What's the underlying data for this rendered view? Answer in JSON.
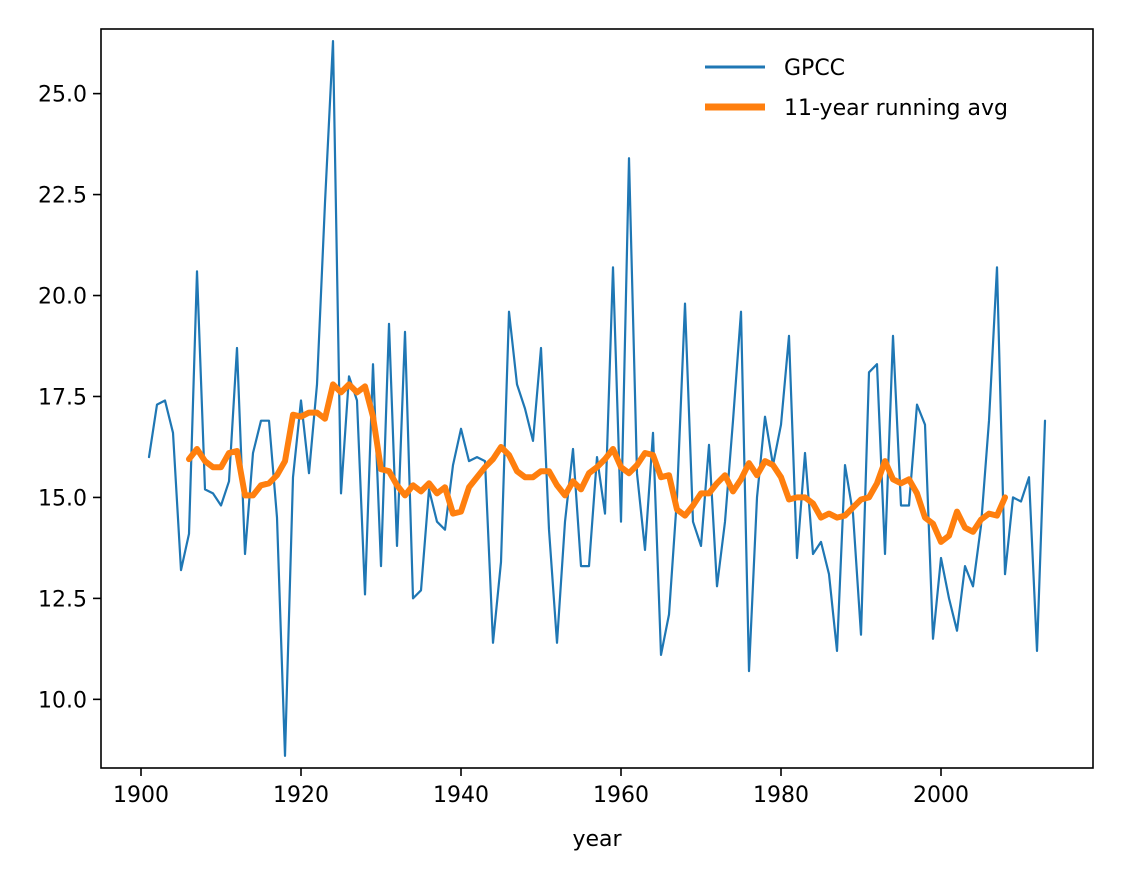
{
  "chart_data": {
    "type": "line",
    "title": "",
    "xlabel": "year",
    "ylabel": "",
    "xlim": [
      1895,
      2019
    ],
    "ylim": [
      8.3,
      26.6
    ],
    "xticks": [
      1900,
      1920,
      1940,
      1960,
      1980,
      2000
    ],
    "xtick_labels": [
      "1900",
      "1920",
      "1940",
      "1960",
      "1980",
      "2000"
    ],
    "yticks": [
      10.0,
      12.5,
      15.0,
      17.5,
      20.0,
      22.5,
      25.0
    ],
    "ytick_labels": [
      "10.0",
      "12.5",
      "15.0",
      "17.5",
      "20.0",
      "22.5",
      "25.0"
    ],
    "grid": false,
    "legend_position": "top-right",
    "series": [
      {
        "name": "GPCC",
        "color": "#1f77b4",
        "x": [
          1901,
          1902,
          1903,
          1904,
          1905,
          1906,
          1907,
          1908,
          1909,
          1910,
          1911,
          1912,
          1913,
          1914,
          1915,
          1916,
          1917,
          1918,
          1919,
          1920,
          1921,
          1922,
          1923,
          1924,
          1925,
          1926,
          1927,
          1928,
          1929,
          1930,
          1931,
          1932,
          1933,
          1934,
          1935,
          1936,
          1937,
          1938,
          1939,
          1940,
          1941,
          1942,
          1943,
          1944,
          1945,
          1946,
          1947,
          1948,
          1949,
          1950,
          1951,
          1952,
          1953,
          1954,
          1955,
          1956,
          1957,
          1958,
          1959,
          1960,
          1961,
          1962,
          1963,
          1964,
          1965,
          1966,
          1967,
          1968,
          1969,
          1970,
          1971,
          1972,
          1973,
          1974,
          1975,
          1976,
          1977,
          1978,
          1979,
          1980,
          1981,
          1982,
          1983,
          1984,
          1985,
          1986,
          1987,
          1988,
          1989,
          1990,
          1991,
          1992,
          1993,
          1994,
          1995,
          1996,
          1997,
          1998,
          1999,
          2000,
          2001,
          2002,
          2003,
          2004,
          2005,
          2006,
          2007,
          2008,
          2009,
          2010,
          2011,
          2012,
          2013
        ],
        "y": [
          16.0,
          17.3,
          17.4,
          16.6,
          13.2,
          14.1,
          20.6,
          15.2,
          15.1,
          14.8,
          15.4,
          18.7,
          13.6,
          16.1,
          16.9,
          16.9,
          14.5,
          8.6,
          15.5,
          17.4,
          15.6,
          17.8,
          22.3,
          26.3,
          15.1,
          18.0,
          17.4,
          12.6,
          18.3,
          13.3,
          19.3,
          13.8,
          19.1,
          12.5,
          12.7,
          15.2,
          14.4,
          14.2,
          15.8,
          16.7,
          15.9,
          16.0,
          15.9,
          11.4,
          13.4,
          19.6,
          17.8,
          17.2,
          16.4,
          18.7,
          14.2,
          11.4,
          14.4,
          16.2,
          13.3,
          13.3,
          16.0,
          14.6,
          20.7,
          14.4,
          23.4,
          15.6,
          13.7,
          16.6,
          11.1,
          12.1,
          15.0,
          19.8,
          14.4,
          13.8,
          16.3,
          12.8,
          14.4,
          16.9,
          19.6,
          10.7,
          15.0,
          17.0,
          15.8,
          16.8,
          19.0,
          13.5,
          16.1,
          13.6,
          13.9,
          13.1,
          11.2,
          15.8,
          14.6,
          11.6,
          18.1,
          18.3,
          13.6,
          19.0,
          14.8,
          14.8,
          17.3,
          16.8,
          11.5,
          13.5,
          12.5,
          11.7,
          13.3,
          12.8,
          14.3,
          16.9,
          20.7,
          13.1,
          15.0,
          14.9,
          15.5,
          11.2,
          16.9
        ]
      },
      {
        "name": "11-year running avg",
        "color": "#ff7f0e",
        "x": [
          1906,
          1907,
          1908,
          1909,
          1910,
          1911,
          1912,
          1913,
          1914,
          1915,
          1916,
          1917,
          1918,
          1919,
          1920,
          1921,
          1922,
          1923,
          1924,
          1925,
          1926,
          1927,
          1928,
          1929,
          1930,
          1931,
          1932,
          1933,
          1934,
          1935,
          1936,
          1937,
          1938,
          1939,
          1940,
          1941,
          1942,
          1943,
          1944,
          1945,
          1946,
          1947,
          1948,
          1949,
          1950,
          1951,
          1952,
          1953,
          1954,
          1955,
          1956,
          1957,
          1958,
          1959,
          1960,
          1961,
          1962,
          1963,
          1964,
          1965,
          1966,
          1967,
          1968,
          1969,
          1970,
          1971,
          1972,
          1973,
          1974,
          1975,
          1976,
          1977,
          1978,
          1979,
          1980,
          1981,
          1982,
          1983,
          1984,
          1985,
          1986,
          1987,
          1988,
          1989,
          1990,
          1991,
          1992,
          1993,
          1994,
          1995,
          1996,
          1997,
          1998,
          1999,
          2000,
          2001,
          2002,
          2003,
          2004,
          2005,
          2006,
          2007,
          2008
        ],
        "y": [
          15.95,
          16.2,
          15.9,
          15.75,
          15.75,
          16.1,
          16.15,
          15.05,
          15.05,
          15.3,
          15.35,
          15.55,
          15.9,
          17.05,
          17.0,
          17.1,
          17.1,
          16.95,
          17.8,
          17.6,
          17.8,
          17.6,
          17.75,
          17.0,
          15.7,
          15.65,
          15.3,
          15.05,
          15.3,
          15.15,
          15.35,
          15.1,
          15.25,
          14.6,
          14.65,
          15.25,
          15.5,
          15.75,
          15.95,
          16.25,
          16.05,
          15.65,
          15.5,
          15.5,
          15.65,
          15.65,
          15.3,
          15.05,
          15.4,
          15.2,
          15.6,
          15.75,
          15.95,
          16.2,
          15.75,
          15.6,
          15.8,
          16.1,
          16.05,
          15.5,
          15.55,
          14.7,
          14.55,
          14.8,
          15.1,
          15.1,
          15.35,
          15.55,
          15.15,
          15.45,
          15.85,
          15.55,
          15.9,
          15.8,
          15.5,
          14.95,
          15.0,
          15.0,
          14.85,
          14.5,
          14.6,
          14.5,
          14.55,
          14.75,
          14.95,
          15.0,
          15.35,
          15.9,
          15.45,
          15.35,
          15.45,
          15.1,
          14.5,
          14.35,
          13.9,
          14.05,
          14.65,
          14.25,
          14.15,
          14.45,
          14.6,
          14.55,
          15.0
        ]
      }
    ]
  }
}
